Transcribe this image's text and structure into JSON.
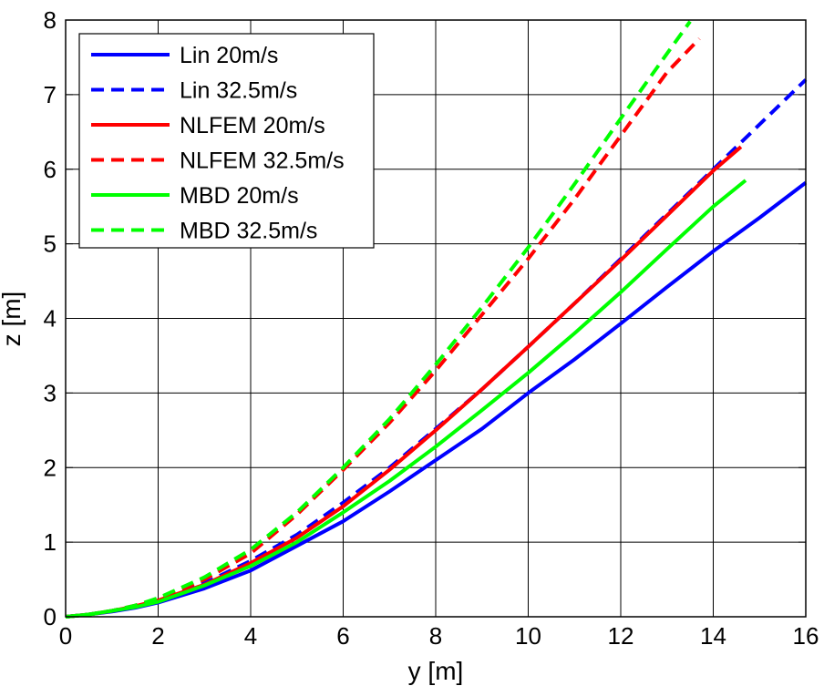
{
  "chart_data": {
    "type": "line",
    "title": "",
    "xlabel": "y [m]",
    "ylabel": "z [m]",
    "xlim": [
      0,
      16
    ],
    "ylim": [
      0,
      8
    ],
    "xticks": [
      "0",
      "2",
      "4",
      "6",
      "8",
      "10",
      "12",
      "14",
      "16"
    ],
    "yticks": [
      "0",
      "1",
      "2",
      "3",
      "4",
      "5",
      "6",
      "7",
      "8"
    ],
    "grid": true,
    "legend_position": "top-left",
    "series": [
      {
        "name": "Lin 20m/s",
        "color": "#0000ff",
        "dash": "solid",
        "x": [
          0,
          0.5,
          1,
          1.5,
          2,
          3,
          4,
          5,
          6,
          7,
          8,
          9,
          10,
          11,
          12,
          13,
          14,
          15,
          16
        ],
        "y": [
          0,
          0.03,
          0.07,
          0.12,
          0.19,
          0.38,
          0.62,
          0.95,
          1.28,
          1.68,
          2.1,
          2.52,
          3.0,
          3.45,
          3.93,
          4.42,
          4.9,
          5.35,
          5.82
        ]
      },
      {
        "name": "Lin 32.5m/s",
        "color": "#0000ff",
        "dash": "dashed",
        "x": [
          0,
          0.5,
          1,
          1.5,
          2,
          3,
          4,
          5,
          6,
          7,
          8,
          9,
          10,
          11,
          12,
          13,
          14,
          15,
          16
        ],
        "y": [
          0,
          0.03,
          0.08,
          0.14,
          0.22,
          0.45,
          0.75,
          1.1,
          1.53,
          2.0,
          2.52,
          3.05,
          3.62,
          4.2,
          4.8,
          5.4,
          6.0,
          6.6,
          7.2
        ]
      },
      {
        "name": "NLFEM 20m/s",
        "color": "#ff0000",
        "dash": "solid",
        "x": [
          0,
          0.5,
          1,
          1.5,
          2,
          3,
          4,
          5,
          6,
          7,
          8,
          9,
          10,
          11,
          12,
          13,
          14,
          14.6
        ],
        "y": [
          0,
          0.03,
          0.08,
          0.14,
          0.22,
          0.43,
          0.72,
          1.06,
          1.48,
          1.97,
          2.5,
          3.05,
          3.62,
          4.2,
          4.78,
          5.38,
          5.98,
          6.3
        ]
      },
      {
        "name": "NLFEM 32.5m/s",
        "color": "#ff0000",
        "dash": "dashed",
        "x": [
          0,
          0.5,
          1,
          1.5,
          2,
          3,
          4,
          5,
          6,
          7,
          8,
          9,
          10,
          11,
          12,
          13,
          13.7
        ],
        "y": [
          0,
          0.03,
          0.08,
          0.15,
          0.24,
          0.5,
          0.85,
          1.37,
          1.97,
          2.6,
          3.3,
          4.05,
          4.8,
          5.6,
          6.45,
          7.3,
          7.75
        ]
      },
      {
        "name": "MBD 20m/s",
        "color": "#00ff00",
        "dash": "solid",
        "x": [
          0,
          0.5,
          1,
          1.5,
          2,
          3,
          4,
          5,
          6,
          7,
          8,
          9,
          10,
          11,
          12,
          13,
          14,
          14.7
        ],
        "y": [
          0,
          0.03,
          0.08,
          0.13,
          0.2,
          0.42,
          0.68,
          1.0,
          1.4,
          1.82,
          2.28,
          2.77,
          3.27,
          3.8,
          4.35,
          4.93,
          5.5,
          5.85
        ]
      },
      {
        "name": "MBD 32.5m/s",
        "color": "#00ff00",
        "dash": "dashed",
        "x": [
          0,
          0.5,
          1,
          1.5,
          2,
          3,
          4,
          5,
          6,
          7,
          8,
          9,
          10,
          11,
          12,
          13,
          13.5
        ],
        "y": [
          0,
          0.03,
          0.08,
          0.15,
          0.25,
          0.53,
          0.9,
          1.4,
          2.0,
          2.65,
          3.38,
          4.15,
          4.95,
          5.8,
          6.68,
          7.55,
          7.98
        ]
      }
    ]
  }
}
